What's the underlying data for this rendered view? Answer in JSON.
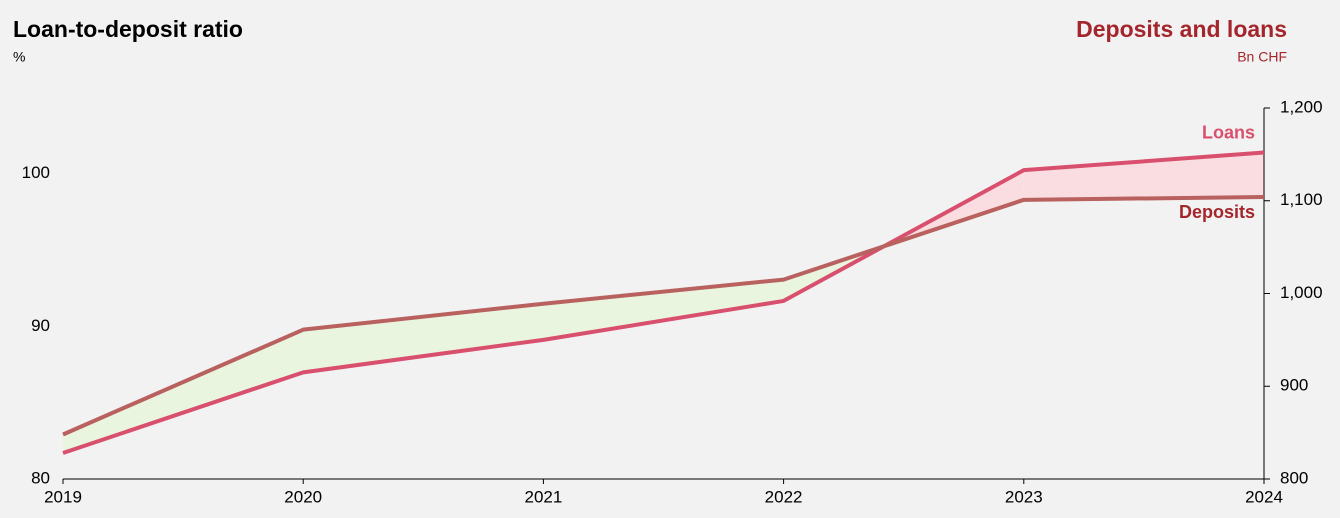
{
  "chart_data": {
    "type": "line",
    "title": "Loan-to-deposit ratio",
    "subtitle": "%",
    "y2_title": "Deposits and loans",
    "y2_subtitle": "Bn CHF",
    "x": [
      2019,
      2020,
      2021,
      2022,
      2023,
      2024
    ],
    "xlim": [
      2019,
      2024
    ],
    "xticks": [
      2019,
      2020,
      2021,
      2022,
      2023,
      2024
    ],
    "ylim": [
      80,
      104.3
    ],
    "yticks": [
      80,
      90,
      100
    ],
    "y2lim": [
      800,
      1200
    ],
    "y2ticks": [
      800,
      900,
      {
        "value": 1000,
        "label": "1,000"
      },
      {
        "value": 1100,
        "label": "1,100"
      },
      {
        "value": 1200,
        "label": "1,200"
      }
    ],
    "series": [
      {
        "name": "Loans",
        "color": "#d9506e",
        "label_color": "#d9506e",
        "axis": "y2",
        "values": [
          828,
          915,
          950,
          992,
          1133,
          1152
        ]
      },
      {
        "name": "Deposits",
        "color": "#b8615e",
        "label_color": "#a4262c",
        "axis": "y2",
        "values": [
          848,
          961,
          989,
          1015,
          1101,
          1104
        ]
      }
    ],
    "fill": {
      "loans_higher": "#f9dde1",
      "deposits_higher": "#e9f5df"
    },
    "title_color": "#000000",
    "y2_title_color": "#a4262c"
  }
}
